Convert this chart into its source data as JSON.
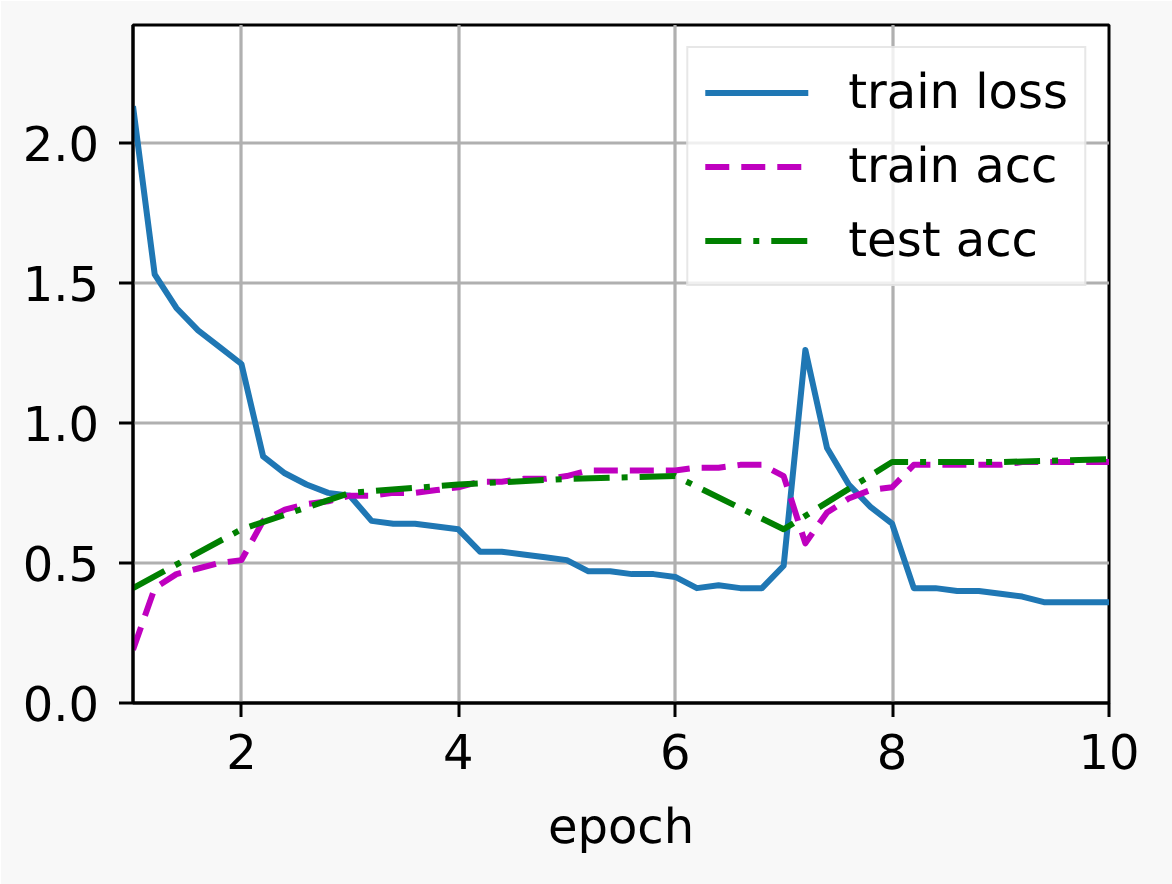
{
  "chart_data": {
    "type": "line",
    "xlabel": "epoch",
    "xlim": [
      1,
      10
    ],
    "ylim": [
      0,
      2.42
    ],
    "xticks": [
      2,
      4,
      6,
      8,
      10
    ],
    "yticks": [
      {
        "value": 0,
        "label": "0.0"
      },
      0.5,
      {
        "value": 1,
        "label": "1.0"
      },
      1.5,
      {
        "value": 2,
        "label": "2.0"
      }
    ],
    "grid": true,
    "legend": "top right",
    "series": [
      {
        "name": "train loss",
        "color": "#1f77b4",
        "line_style": "solid",
        "x": [
          1.0,
          1.2,
          1.4,
          1.6,
          1.8,
          2.0,
          2.2,
          2.4,
          2.6,
          2.8,
          3.0,
          3.2,
          3.4,
          3.6,
          3.8,
          4.0,
          4.2,
          4.4,
          4.6,
          4.8,
          5.0,
          5.2,
          5.4,
          5.6,
          5.8,
          6.0,
          6.2,
          6.4,
          6.6,
          6.8,
          7.0,
          7.2,
          7.4,
          7.6,
          7.8,
          8.0,
          8.2,
          8.4,
          8.6,
          8.8,
          9.0,
          9.2,
          9.4,
          9.6,
          9.8,
          10.0
        ],
        "values": [
          2.13,
          1.53,
          1.41,
          1.33,
          1.27,
          1.21,
          0.88,
          0.82,
          0.78,
          0.75,
          0.74,
          0.65,
          0.64,
          0.64,
          0.63,
          0.62,
          0.54,
          0.54,
          0.53,
          0.52,
          0.51,
          0.47,
          0.47,
          0.46,
          0.46,
          0.45,
          0.41,
          0.42,
          0.41,
          0.41,
          0.49,
          1.26,
          0.91,
          0.78,
          0.7,
          0.64,
          0.41,
          0.41,
          0.4,
          0.4,
          0.39,
          0.38,
          0.36,
          0.36,
          0.36,
          0.36
        ]
      },
      {
        "name": "train acc",
        "color": "#bf00bf",
        "line_style": "dashed",
        "x": [
          1.0,
          1.2,
          1.4,
          1.6,
          1.8,
          2.0,
          2.2,
          2.4,
          2.6,
          2.8,
          3.0,
          3.2,
          3.4,
          3.6,
          3.8,
          4.0,
          4.2,
          4.4,
          4.6,
          4.8,
          5.0,
          5.2,
          5.4,
          5.6,
          5.8,
          6.0,
          6.2,
          6.4,
          6.6,
          6.8,
          7.0,
          7.2,
          7.4,
          7.6,
          7.8,
          8.0,
          8.2,
          8.4,
          8.6,
          8.8,
          9.0,
          9.2,
          9.4,
          9.6,
          9.8,
          10.0
        ],
        "values": [
          0.19,
          0.41,
          0.46,
          0.48,
          0.5,
          0.51,
          0.65,
          0.69,
          0.71,
          0.72,
          0.74,
          0.74,
          0.75,
          0.75,
          0.76,
          0.77,
          0.79,
          0.79,
          0.8,
          0.8,
          0.81,
          0.83,
          0.83,
          0.83,
          0.83,
          0.83,
          0.84,
          0.84,
          0.85,
          0.85,
          0.81,
          0.57,
          0.68,
          0.73,
          0.76,
          0.77,
          0.85,
          0.85,
          0.85,
          0.85,
          0.85,
          0.86,
          0.86,
          0.86,
          0.86,
          0.86
        ]
      },
      {
        "name": "test acc",
        "color": "#008000",
        "line_style": "dashdot",
        "x": [
          1,
          2,
          3,
          4,
          5,
          6,
          7,
          8,
          9,
          10
        ],
        "values": [
          0.41,
          0.62,
          0.75,
          0.78,
          0.8,
          0.81,
          0.62,
          0.86,
          0.86,
          0.87
        ]
      }
    ]
  }
}
